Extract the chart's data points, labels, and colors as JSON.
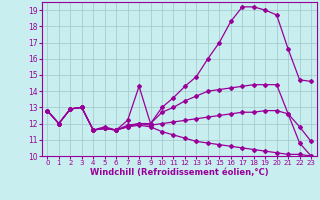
{
  "xlabel": "Windchill (Refroidissement éolien,°C)",
  "bg_color": "#c8eef0",
  "line_color": "#990099",
  "grid_color": "#a0c8c8",
  "xlim": [
    -0.5,
    23.5
  ],
  "ylim": [
    10,
    19.5
  ],
  "xticks": [
    0,
    1,
    2,
    3,
    4,
    5,
    6,
    7,
    8,
    9,
    10,
    11,
    12,
    13,
    14,
    15,
    16,
    17,
    18,
    19,
    20,
    21,
    22,
    23
  ],
  "yticks": [
    10,
    11,
    12,
    13,
    14,
    15,
    16,
    17,
    18,
    19
  ],
  "line1_x": [
    0,
    1,
    2,
    3,
    4,
    5,
    6,
    7,
    8,
    9,
    10,
    11,
    12,
    13,
    14,
    15,
    16,
    17,
    18,
    19,
    20,
    21,
    22,
    23
  ],
  "line1_y": [
    12.8,
    12.0,
    12.9,
    13.0,
    11.6,
    11.8,
    11.6,
    12.2,
    14.3,
    12.0,
    13.0,
    13.6,
    14.3,
    14.9,
    16.0,
    17.0,
    18.3,
    19.2,
    19.2,
    19.0,
    18.7,
    16.6,
    14.7,
    14.6
  ],
  "line2_x": [
    0,
    1,
    2,
    3,
    4,
    5,
    6,
    7,
    8,
    9,
    10,
    11,
    12,
    13,
    14,
    15,
    16,
    17,
    18,
    19,
    20,
    21,
    22,
    23
  ],
  "line2_y": [
    12.8,
    12.0,
    12.9,
    13.0,
    11.6,
    11.7,
    11.6,
    11.8,
    12.0,
    12.0,
    12.7,
    13.0,
    13.4,
    13.7,
    14.0,
    14.1,
    14.2,
    14.3,
    14.4,
    14.4,
    14.4,
    12.6,
    11.8,
    10.9
  ],
  "line3_x": [
    0,
    1,
    2,
    3,
    4,
    5,
    6,
    7,
    8,
    9,
    10,
    11,
    12,
    13,
    14,
    15,
    16,
    17,
    18,
    19,
    20,
    21,
    22,
    23
  ],
  "line3_y": [
    12.8,
    12.0,
    12.9,
    13.0,
    11.6,
    11.7,
    11.6,
    11.9,
    12.0,
    11.9,
    12.0,
    12.1,
    12.2,
    12.3,
    12.4,
    12.5,
    12.6,
    12.7,
    12.7,
    12.8,
    12.8,
    12.6,
    10.8,
    10.0
  ],
  "line4_x": [
    0,
    1,
    2,
    3,
    4,
    5,
    6,
    7,
    8,
    9,
    10,
    11,
    12,
    13,
    14,
    15,
    16,
    17,
    18,
    19,
    20,
    21,
    22,
    23
  ],
  "line4_y": [
    12.8,
    12.0,
    12.9,
    13.0,
    11.6,
    11.7,
    11.6,
    11.8,
    11.9,
    11.8,
    11.5,
    11.3,
    11.1,
    10.9,
    10.8,
    10.7,
    10.6,
    10.5,
    10.4,
    10.3,
    10.2,
    10.1,
    10.1,
    10.0
  ],
  "marker_style": "D",
  "marker_size": 2,
  "line_width": 0.9
}
